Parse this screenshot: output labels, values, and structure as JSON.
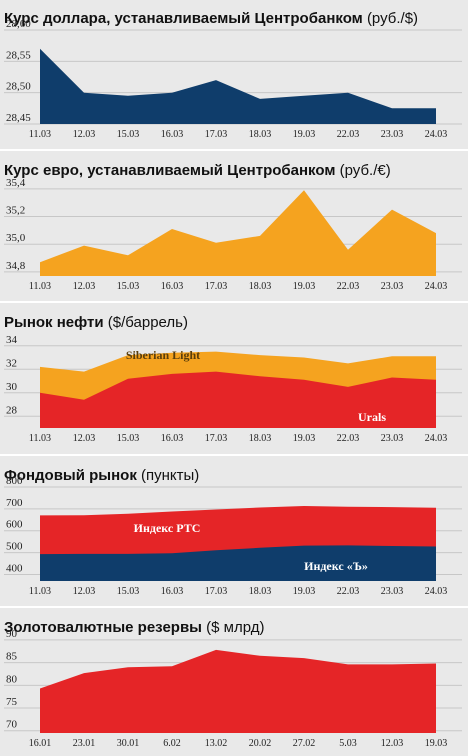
{
  "colors": {
    "dollar": "#0f3d6b",
    "euro": "#f5a31f",
    "oil_siberian": "#f5a31f",
    "oil_urals": "#e52527",
    "rts": "#e52527",
    "kommersant": "#0f3d6b",
    "reserves": "#e52527",
    "grid": "#c7c7c7"
  },
  "chart_data": [
    {
      "id": "dollar",
      "type": "area",
      "title": "Курс доллара, устанавливаемый Центробанком",
      "unit": "(руб./$)",
      "x": [
        "11.03",
        "12.03",
        "15.03",
        "16.03",
        "17.03",
        "18.03",
        "19.03",
        "22.03",
        "23.03",
        "24.03"
      ],
      "series": [
        {
          "values": [
            28.57,
            28.5,
            28.495,
            28.5,
            28.52,
            28.49,
            28.495,
            28.5,
            28.475,
            28.475
          ]
        }
      ],
      "yticks": [
        "28,45",
        "28,50",
        "28,55",
        "28,60"
      ],
      "ylim": [
        28.45,
        28.6
      ],
      "grid": true
    },
    {
      "id": "euro",
      "type": "area",
      "title": "Курс евро, устанавливаемый Центробанком",
      "unit": "(руб./€)",
      "x": [
        "11.03",
        "12.03",
        "15.03",
        "16.03",
        "17.03",
        "18.03",
        "19.03",
        "22.03",
        "23.03",
        "24.03"
      ],
      "series": [
        {
          "values": [
            34.87,
            34.99,
            34.92,
            35.11,
            35.01,
            35.06,
            35.39,
            34.96,
            35.25,
            35.08
          ]
        }
      ],
      "yticks": [
        "34,8",
        "35,0",
        "35,2",
        "35,4"
      ],
      "ylim": [
        34.77,
        35.45
      ],
      "grid": true
    },
    {
      "id": "oil",
      "type": "area",
      "title": "Рынок нефти",
      "unit": "($/баррель)",
      "x": [
        "11.03",
        "12.03",
        "15.03",
        "16.03",
        "17.03",
        "18.03",
        "19.03",
        "22.03",
        "23.03",
        "24.03"
      ],
      "series": [
        {
          "name": "Siberian Light",
          "values": [
            32.2,
            31.8,
            33.2,
            33.4,
            33.5,
            33.2,
            33.0,
            32.5,
            33.1,
            33.1
          ]
        },
        {
          "name": "Urals",
          "values": [
            30.0,
            29.4,
            31.2,
            31.6,
            31.8,
            31.4,
            31.1,
            30.5,
            31.3,
            31.1
          ]
        }
      ],
      "yticks": [
        "28",
        "30",
        "32",
        "34"
      ],
      "ylim": [
        27.0,
        35.0
      ],
      "grid": true
    },
    {
      "id": "stocks",
      "type": "area",
      "title": "Фондовый рынок",
      "unit": "(пункты)",
      "x": [
        "11.03",
        "12.03",
        "15.03",
        "16.03",
        "17.03",
        "18.03",
        "19.03",
        "22.03",
        "23.03",
        "24.03"
      ],
      "series": [
        {
          "name": "Индекс РТС",
          "values": [
            670,
            671,
            678,
            688,
            697,
            706,
            713,
            710,
            708,
            705
          ]
        },
        {
          "name": "Индекс «Ъ»",
          "values": [
            493,
            494,
            494,
            497,
            511,
            522,
            532,
            533,
            530,
            528
          ]
        }
      ],
      "yticks": [
        "400",
        "500",
        "600",
        "700",
        "800"
      ],
      "ylim": [
        370,
        800
      ],
      "grid": true
    },
    {
      "id": "reserves",
      "type": "area",
      "title": "Золотовалютные резервы",
      "unit": "($ млрд)",
      "x": [
        "16.01",
        "23.01",
        "30.01",
        "6.02",
        "13.02",
        "20.02",
        "27.02",
        "5.03",
        "12.03",
        "19.03"
      ],
      "series": [
        {
          "values": [
            79.3,
            82.7,
            84.0,
            84.2,
            87.8,
            86.5,
            86.0,
            84.6,
            84.6,
            84.8
          ]
        }
      ],
      "yticks": [
        "70",
        "75",
        "80",
        "85",
        "90"
      ],
      "ylim": [
        69.5,
        90.2
      ],
      "grid": true
    }
  ]
}
